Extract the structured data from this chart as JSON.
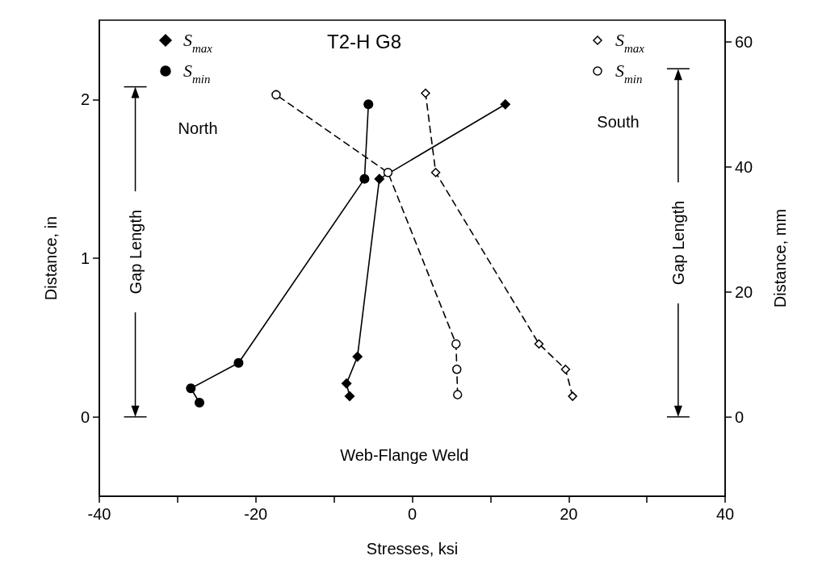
{
  "chart_data": {
    "type": "line",
    "title": "T2-H G8",
    "xlabel": "Stresses, ksi",
    "ylabel": "Distance, in",
    "y2label": "Distance, mm",
    "xlim": [
      -40,
      40
    ],
    "xticks": [
      -40,
      {
        "value": -30,
        "label": null
      },
      -20,
      {
        "value": -10,
        "label": null
      },
      0,
      {
        "value": 10,
        "label": null
      },
      20,
      {
        "value": 30,
        "label": null
      },
      40
    ],
    "ylim": [
      -0.5,
      2.5
    ],
    "yticks": [
      0,
      1,
      2
    ],
    "y2lim": [
      -12.7,
      63.5
    ],
    "y2ticks": [
      0,
      20,
      40,
      60
    ],
    "grid": false,
    "legend": "top",
    "series": [
      {
        "name": "S$_{max}$",
        "color": "#000000",
        "marker": "diamond",
        "line_style": "solid",
        "x": [
          -8.0,
          -8.4,
          -7.0,
          -4.2,
          11.9
        ],
        "values": [
          0.13,
          0.21,
          0.38,
          1.5,
          1.97
        ]
      },
      {
        "name": "S$_{min}$",
        "color": "#000000",
        "marker": "circle",
        "line_style": "solid",
        "x": [
          -27.2,
          -28.3,
          -22.2,
          -6.1,
          -5.6
        ],
        "values": [
          0.09,
          0.18,
          0.34,
          1.5,
          1.97
        ]
      },
      {
        "name": "S$_{max}$",
        "color": "#000000",
        "marker": "diamond",
        "line_style": "dashed",
        "x": [
          20.5,
          19.6,
          16.2,
          3.0,
          1.7
        ],
        "values": [
          0.13,
          0.3,
          0.46,
          1.54,
          2.04
        ]
      },
      {
        "name": "S$_{min}$",
        "color": "#000000",
        "marker": "circle",
        "line_style": "dashed",
        "x": [
          5.8,
          5.7,
          5.6,
          -3.1,
          -17.4
        ],
        "values": [
          0.14,
          0.3,
          0.46,
          1.54,
          2.03
        ]
      }
    ],
    "annotations": [
      "North",
      "South",
      "Web-Flange Weld",
      "Gap Length",
      "Gap Length"
    ]
  }
}
